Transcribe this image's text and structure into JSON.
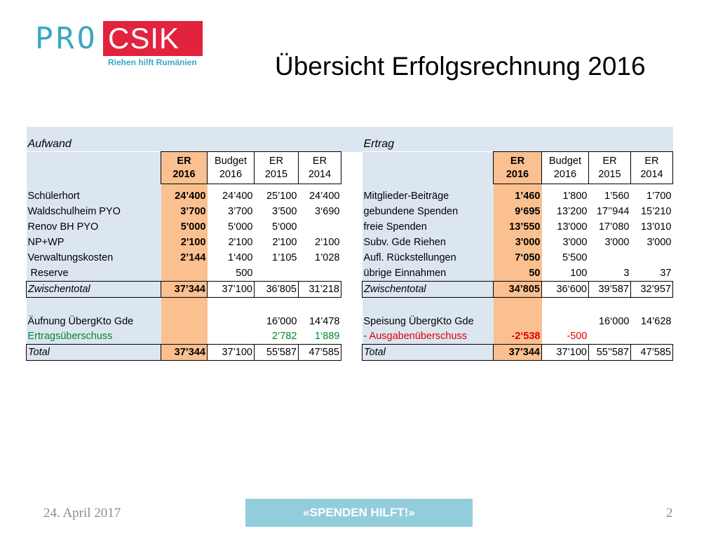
{
  "logo": {
    "pro": "PRO",
    "csik": "CSIK",
    "tagline": "Riehen hilft Rumänien"
  },
  "title": "Übersicht Erfolgsrechnung 2016",
  "aufwand": {
    "heading": "Aufwand",
    "columns": [
      {
        "l1": "ER",
        "l2": "2016"
      },
      {
        "l1": "Budget",
        "l2": "2016"
      },
      {
        "l1": "ER",
        "l2": "2015"
      },
      {
        "l1": "ER",
        "l2": "2014"
      }
    ],
    "rows": [
      {
        "label": "Schülerhort",
        "v": [
          "24’400",
          "24’400",
          "25’100",
          "24’400"
        ]
      },
      {
        "label": "Waldschulheim PYO",
        "v": [
          "3’700",
          "3’700",
          "3’500",
          "3‘690"
        ]
      },
      {
        "label": "Renov BH PYO",
        "v": [
          "5'000",
          "5‘000",
          "5‘000",
          ""
        ]
      },
      {
        "label": "NP+WP",
        "v": [
          "2'100",
          "2'100",
          "2'100",
          "2‘100"
        ]
      },
      {
        "label": "Verwaltungskosten",
        "v": [
          "2’144",
          "1‘400",
          "1’105",
          "1’028"
        ]
      },
      {
        "label": " Reserve",
        "v": [
          "",
          "500",
          "",
          ""
        ]
      },
      {
        "label": "Zwischentotal",
        "v": [
          "37’344",
          "37’100",
          "36’805",
          "31’218"
        ]
      },
      {
        "label": "Äufnung ÜbergKto Gde",
        "v": [
          "",
          "",
          "16’000",
          "14’478"
        ]
      },
      {
        "label": "Ertragsüberschuss",
        "v": [
          "",
          "",
          "2’782",
          "1‘889"
        ]
      },
      {
        "label": "Total",
        "v": [
          "37’344",
          "37’100",
          "55'587",
          "47’585"
        ]
      }
    ]
  },
  "ertrag": {
    "heading": "Ertrag",
    "columns": [
      {
        "l1": "ER",
        "l2": "2016"
      },
      {
        "l1": "Budget",
        "l2": "2016"
      },
      {
        "l1": "ER",
        "l2": "2015"
      },
      {
        "l1": "ER",
        "l2": "2014"
      }
    ],
    "rows": [
      {
        "label": "Mitglieder-Beiträge",
        "v": [
          "1’460",
          "1'800",
          "1’560",
          "1’700"
        ]
      },
      {
        "label": "gebundene Spenden",
        "v": [
          "9‘695",
          "13’200",
          "17’’944",
          "15’210"
        ]
      },
      {
        "label": "freie Spenden",
        "v": [
          "13’550",
          "13'000",
          "17’080",
          "13’010"
        ]
      },
      {
        "label": "Subv. Gde Riehen",
        "v": [
          "3'000",
          "3'000",
          "3'000",
          "3'000"
        ]
      },
      {
        "label": "Aufl. Rückstellungen",
        "v": [
          "7‘050",
          "5‘500",
          "",
          ""
        ]
      },
      {
        "label": "übrige Einnahmen",
        "v": [
          "50",
          "100",
          "3",
          "37"
        ]
      },
      {
        "label": "Zwischentotal",
        "v": [
          "34’805",
          "36‘600",
          "39’587",
          "32’957"
        ]
      },
      {
        "label": "Speisung ÜbergKto Gde",
        "v": [
          "",
          "",
          "16‘000",
          "14’628"
        ]
      },
      {
        "label": "- Ausgabenüberschuss",
        "v": [
          "-2‘538",
          "-500",
          "",
          ""
        ]
      },
      {
        "label": "Total",
        "v": [
          "37’344",
          "37’100",
          "55’'587",
          "47’585"
        ]
      }
    ]
  },
  "footer": {
    "date": "24. April 2017",
    "button": "«SPENDEN HILFT!»",
    "page": "2"
  },
  "colors": {
    "header_band": "#dce6f1",
    "er_column": "#fac090",
    "logo_blue": "#3aa8c1",
    "logo_red": "#e2233d",
    "button": "#92cddc",
    "green": "#00882b",
    "red": "#e00000"
  }
}
